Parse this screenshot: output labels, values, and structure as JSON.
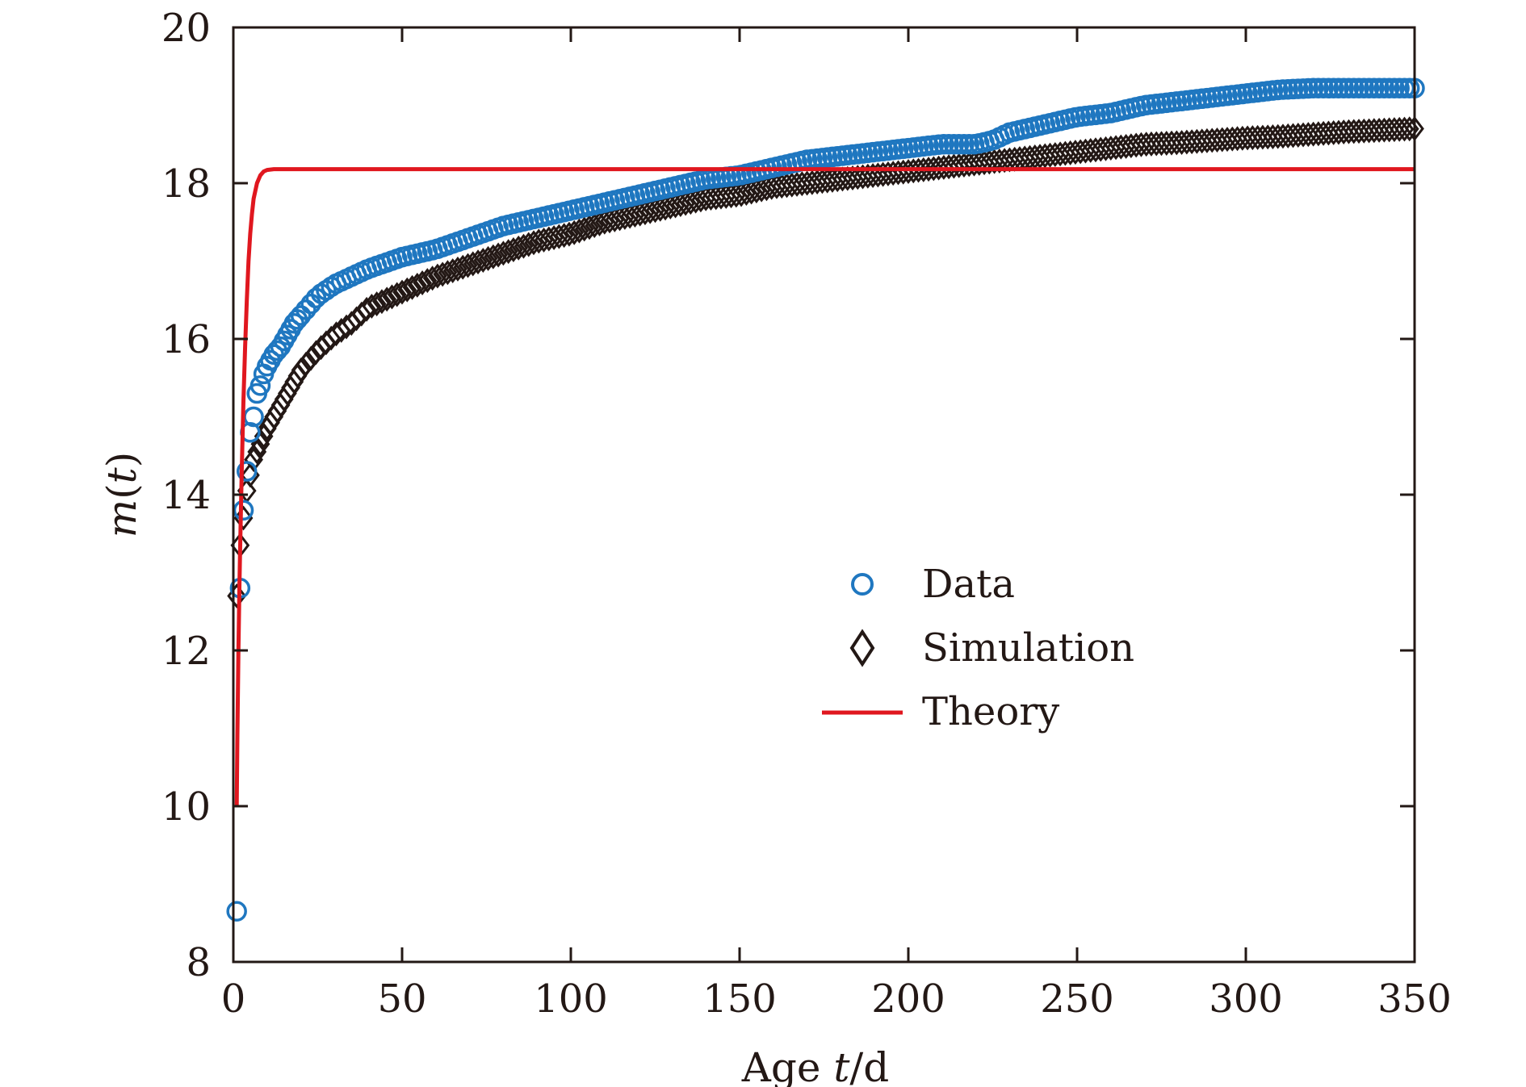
{
  "chart_data": {
    "type": "scatter",
    "title": "",
    "xlabel": "Age t/d",
    "xlabel_parts": {
      "prefix": "Age ",
      "var": "t",
      "suffix": "/d"
    },
    "ylabel": "m(t)",
    "ylabel_parts": {
      "var": "m",
      "open": "(",
      "arg": "t",
      "close": ")"
    },
    "xlim": [
      0,
      350
    ],
    "ylim": [
      8,
      20
    ],
    "xticks": [
      0,
      50,
      100,
      150,
      200,
      250,
      300,
      350
    ],
    "yticks": [
      8,
      10,
      12,
      14,
      16,
      18,
      20
    ],
    "grid": false,
    "legend_position": "center-right",
    "series": [
      {
        "name": "Data",
        "marker": "circle",
        "color": "#1f77c0",
        "x": [
          1,
          2,
          3,
          4,
          5,
          6,
          7,
          8,
          9,
          10,
          12,
          14,
          16,
          18,
          20,
          25,
          30,
          35,
          40,
          50,
          60,
          70,
          80,
          90,
          100,
          110,
          120,
          130,
          140,
          150,
          160,
          170,
          180,
          190,
          200,
          210,
          220,
          225,
          230,
          240,
          250,
          260,
          270,
          280,
          290,
          300,
          310,
          320,
          330,
          340,
          350
        ],
        "y": [
          8.65,
          12.8,
          13.8,
          14.3,
          14.8,
          15.0,
          15.3,
          15.4,
          15.55,
          15.65,
          15.8,
          15.9,
          16.05,
          16.2,
          16.3,
          16.55,
          16.7,
          16.8,
          16.9,
          17.05,
          17.15,
          17.3,
          17.45,
          17.55,
          17.65,
          17.75,
          17.85,
          17.95,
          18.05,
          18.1,
          18.2,
          18.3,
          18.35,
          18.4,
          18.45,
          18.5,
          18.5,
          18.55,
          18.65,
          18.75,
          18.85,
          18.9,
          19.0,
          19.05,
          19.1,
          19.15,
          19.2,
          19.22,
          19.22,
          19.22,
          19.22
        ]
      },
      {
        "name": "Simulation",
        "marker": "diamond",
        "color": "#231815",
        "x": [
          1,
          2,
          3,
          4,
          5,
          6,
          7,
          8,
          10,
          12,
          14,
          16,
          18,
          20,
          25,
          30,
          35,
          40,
          45,
          50,
          60,
          70,
          80,
          90,
          100,
          110,
          120,
          130,
          140,
          150,
          160,
          170,
          180,
          190,
          200,
          210,
          220,
          230,
          240,
          250,
          260,
          270,
          280,
          290,
          300,
          310,
          320,
          330,
          340,
          350
        ],
        "y": [
          12.7,
          13.35,
          13.7,
          14.05,
          14.25,
          14.45,
          14.55,
          14.65,
          14.85,
          15.0,
          15.15,
          15.3,
          15.45,
          15.6,
          15.85,
          16.05,
          16.2,
          16.4,
          16.5,
          16.6,
          16.8,
          16.95,
          17.1,
          17.25,
          17.35,
          17.5,
          17.6,
          17.7,
          17.8,
          17.85,
          17.95,
          18.0,
          18.05,
          18.1,
          18.15,
          18.2,
          18.25,
          18.3,
          18.35,
          18.4,
          18.45,
          18.5,
          18.52,
          18.55,
          18.58,
          18.6,
          18.63,
          18.66,
          18.68,
          18.7
        ]
      },
      {
        "name": "Theory",
        "marker": "line",
        "color": "#e0171f",
        "x": [
          1.0,
          1.2,
          1.5,
          1.8,
          2.0,
          2.5,
          3.0,
          3.5,
          4.0,
          4.5,
          5.0,
          5.5,
          6.0,
          7.0,
          8.0,
          9.0,
          10.0,
          12.0,
          15.0,
          20.0,
          50.0,
          100.0,
          200.0,
          300.0,
          350.0
        ],
        "y": [
          10.0,
          10.9,
          12.0,
          12.8,
          13.3,
          14.3,
          15.2,
          15.9,
          16.5,
          17.0,
          17.35,
          17.6,
          17.8,
          18.0,
          18.1,
          18.15,
          18.17,
          18.18,
          18.18,
          18.18,
          18.18,
          18.18,
          18.18,
          18.18,
          18.18
        ]
      }
    ]
  }
}
